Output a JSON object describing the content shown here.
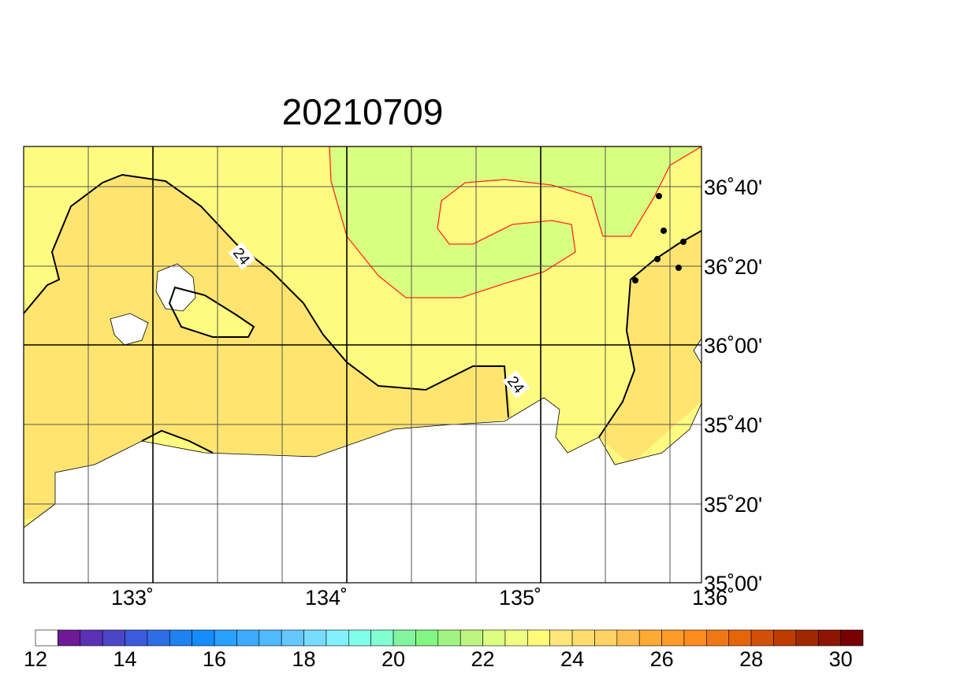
{
  "title": "20210709",
  "map": {
    "lon_labels": [
      "133˚",
      "134˚",
      "135˚",
      "136˚"
    ],
    "lat_labels": [
      "36˚40'",
      "36˚20'",
      "36˚00'",
      "35˚40'",
      "35˚20'",
      "35˚00'"
    ],
    "contour_labels": [
      "24",
      "24"
    ]
  },
  "colorbar": {
    "labels": [
      "12",
      "14",
      "16",
      "18",
      "20",
      "22",
      "24",
      "26",
      "28",
      "30"
    ]
  }
}
